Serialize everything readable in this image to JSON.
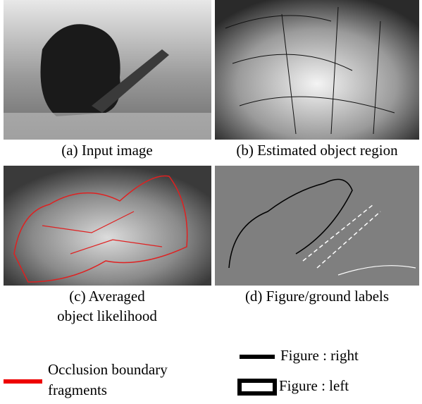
{
  "panels": [
    {
      "caption": [
        "(a) Input image"
      ]
    },
    {
      "caption": [
        "(b) Estimated object region"
      ]
    },
    {
      "caption": [
        "(c) Averaged",
        "object likelihood"
      ]
    },
    {
      "caption": [
        "(d) Figure/ground labels"
      ]
    }
  ],
  "legend": [
    {
      "label": [
        "Occlusion boundary",
        "fragments"
      ]
    },
    {
      "label": [
        "Figure : right"
      ]
    },
    {
      "label": [
        "Figure : left"
      ]
    }
  ]
}
